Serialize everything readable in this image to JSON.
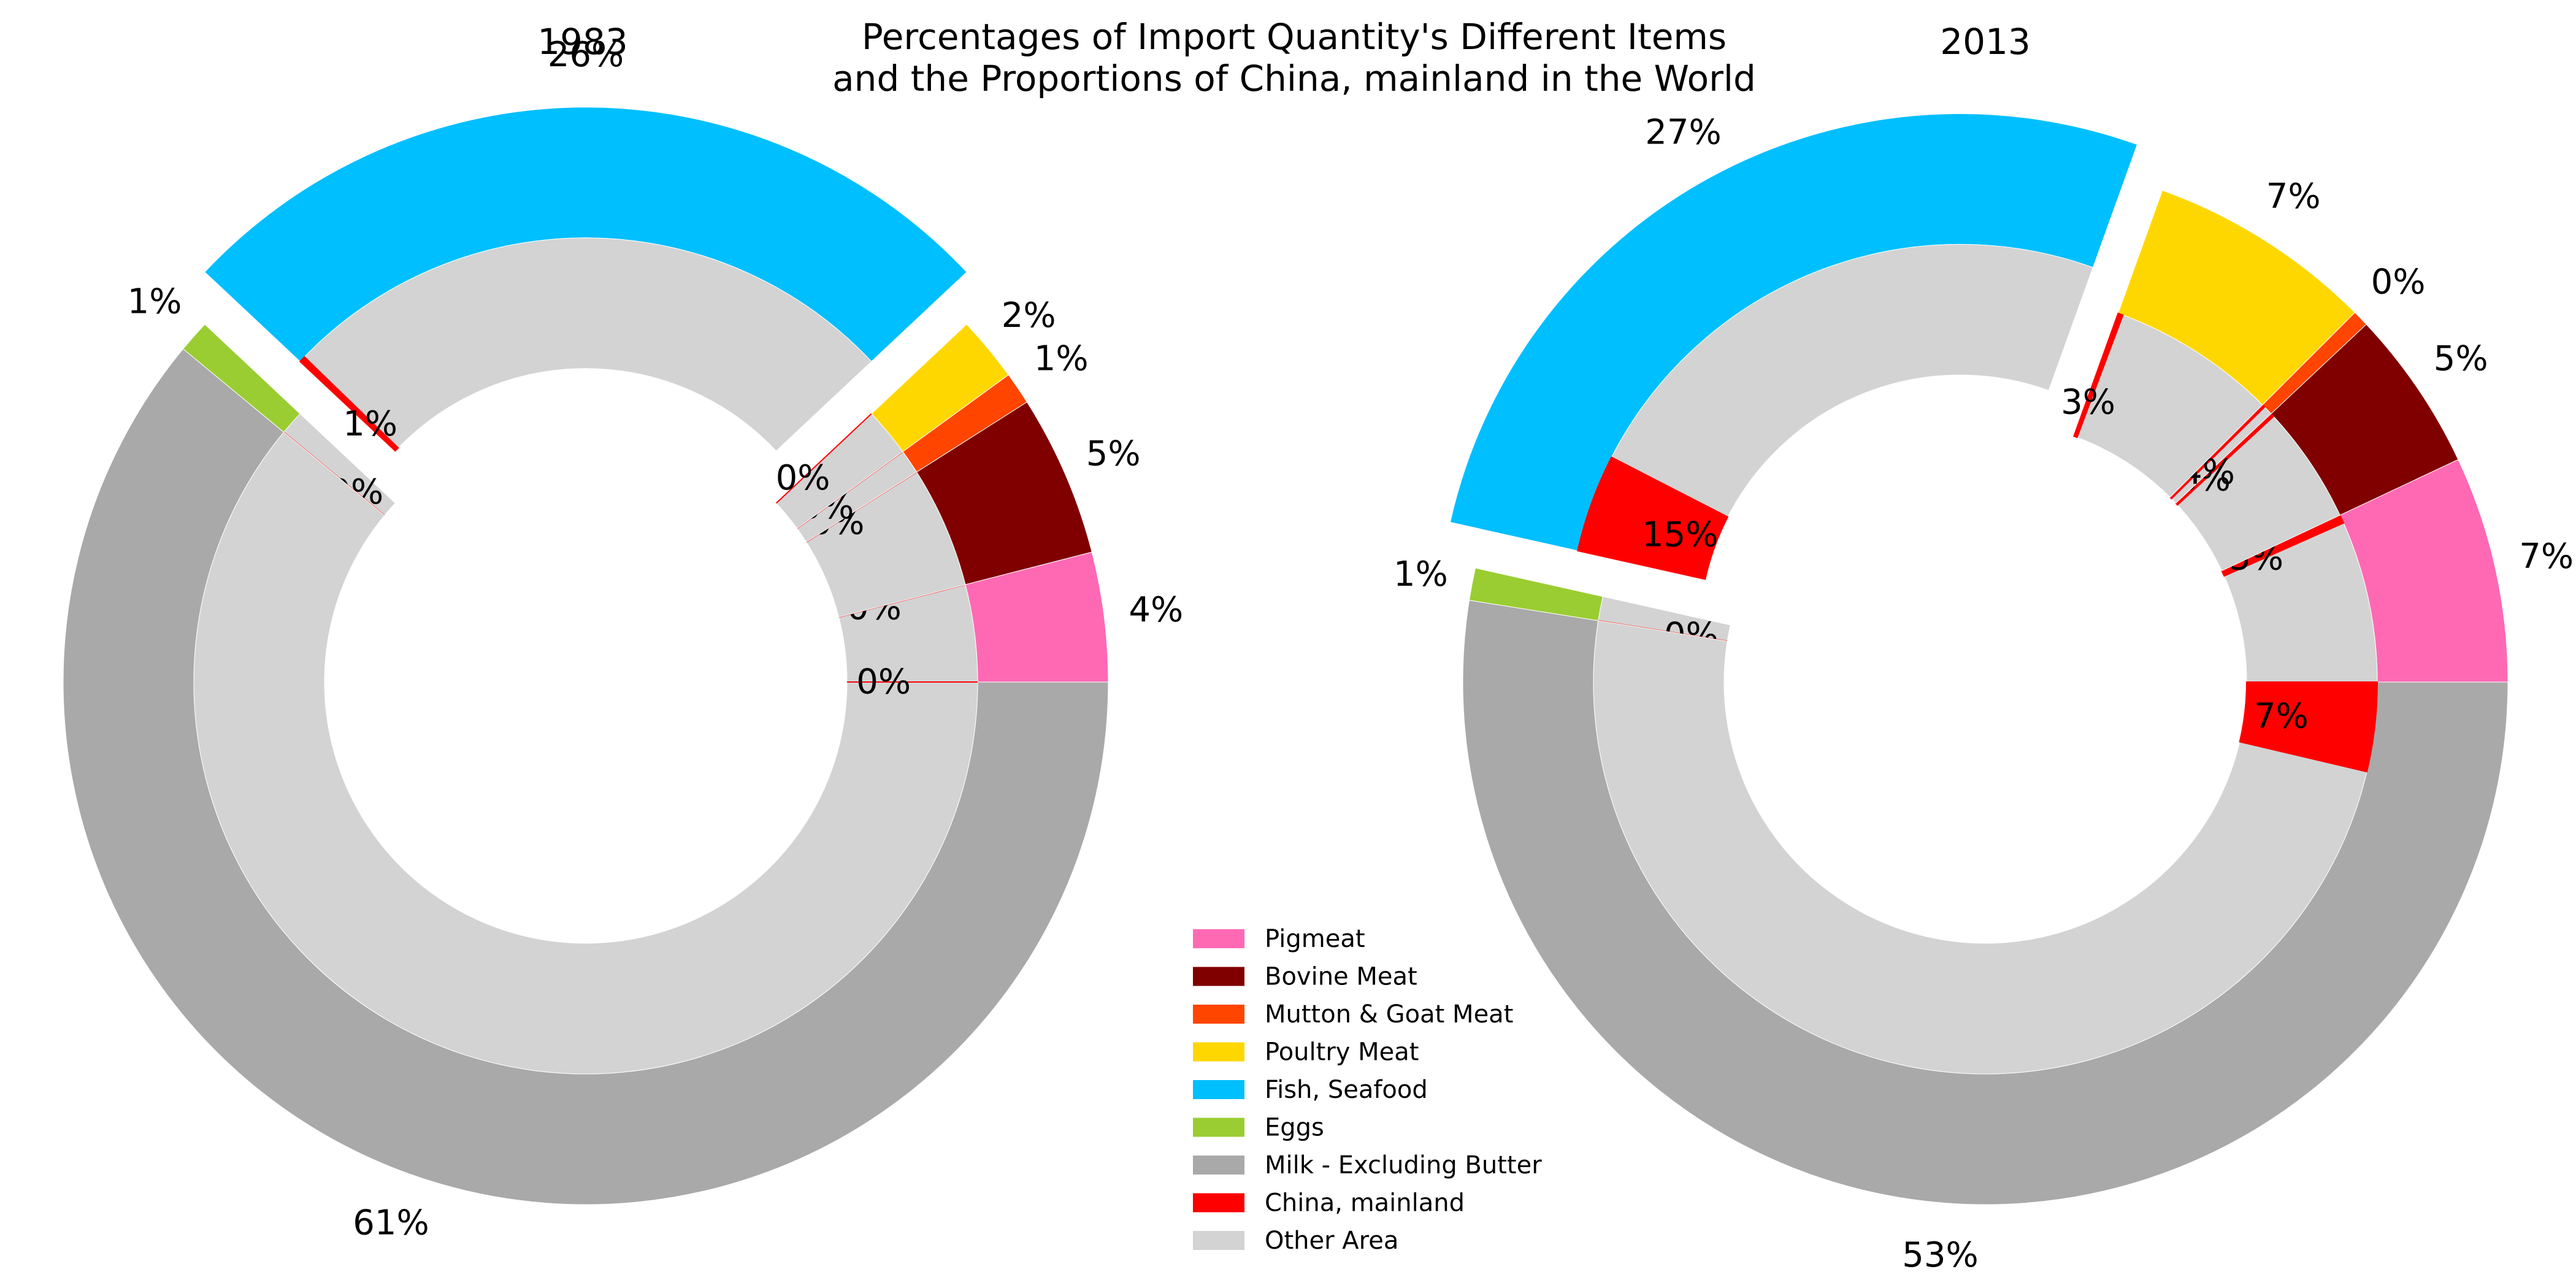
{
  "figure": {
    "title_line1": "Percentages of Import Quantity's Different Items",
    "title_line2": "and the Proportions of China, mainland in the World"
  },
  "legend": [
    {
      "label": "Pigmeat",
      "color": "#ff69b4"
    },
    {
      "label": "Bovine Meat",
      "color": "#800000"
    },
    {
      "label": "Mutton & Goat Meat",
      "color": "#ff4500"
    },
    {
      "label": "Poultry Meat",
      "color": "#ffd700"
    },
    {
      "label": "Fish, Seafood",
      "color": "#00bfff"
    },
    {
      "label": "Eggs",
      "color": "#9acd32"
    },
    {
      "label": "Milk - Excluding Butter",
      "color": "#a9a9a9"
    },
    {
      "label": "China, mainland",
      "color": "#ff0000"
    },
    {
      "label": "Other Area",
      "color": "#d3d3d3"
    }
  ],
  "chart_data": [
    {
      "type": "pie",
      "subtype": "nested-donut",
      "title": "1983",
      "explode": "Fish, Seafood",
      "outer": {
        "categories": [
          "Pigmeat",
          "Bovine Meat",
          "Mutton & Goat Meat",
          "Poultry Meat",
          "Fish, Seafood",
          "Eggs",
          "Milk - Excluding Butter"
        ],
        "values": [
          4,
          5,
          1,
          2,
          26,
          1,
          61
        ],
        "labels": [
          "4%",
          "5%",
          "1%",
          "2%",
          "26%",
          "1%",
          "61%"
        ]
      },
      "inner": [
        {
          "item": "Pigmeat",
          "china": 0,
          "label": "0%"
        },
        {
          "item": "Bovine Meat",
          "china": 0,
          "label": "0%"
        },
        {
          "item": "Mutton & Goat Meat",
          "china": 0,
          "label": "0%"
        },
        {
          "item": "Poultry Meat",
          "china": 0,
          "label": "0%"
        },
        {
          "item": "Fish, Seafood",
          "china": 1,
          "label": "1%"
        },
        {
          "item": "Eggs",
          "china": 0,
          "label": "0%"
        },
        {
          "item": "Milk - Excluding Butter",
          "china": 0,
          "label": "0%"
        }
      ]
    },
    {
      "type": "pie",
      "subtype": "nested-donut",
      "title": "2013",
      "explode": "Fish, Seafood",
      "outer": {
        "categories": [
          "Pigmeat",
          "Bovine Meat",
          "Mutton & Goat Meat",
          "Poultry Meat",
          "Fish, Seafood",
          "Eggs",
          "Milk - Excluding Butter"
        ],
        "values": [
          7,
          5,
          0.5,
          7,
          27,
          1,
          52.5
        ],
        "labels": [
          "7%",
          "5%",
          "0%",
          "7%",
          "27%",
          "1%",
          "53%"
        ]
      },
      "inner": [
        {
          "item": "Pigmeat",
          "china": 5,
          "label": "5%"
        },
        {
          "item": "Bovine Meat",
          "china": 3,
          "label": "3%"
        },
        {
          "item": "Mutton & Goat Meat",
          "china": 24,
          "label": "24%"
        },
        {
          "item": "Poultry Meat",
          "china": 3,
          "label": "3%"
        },
        {
          "item": "Fish, Seafood",
          "china": 15,
          "label": "15%"
        },
        {
          "item": "Eggs",
          "china": 0,
          "label": "0%"
        },
        {
          "item": "Milk - Excluding Butter",
          "china": 7,
          "label": "7%"
        }
      ]
    }
  ]
}
